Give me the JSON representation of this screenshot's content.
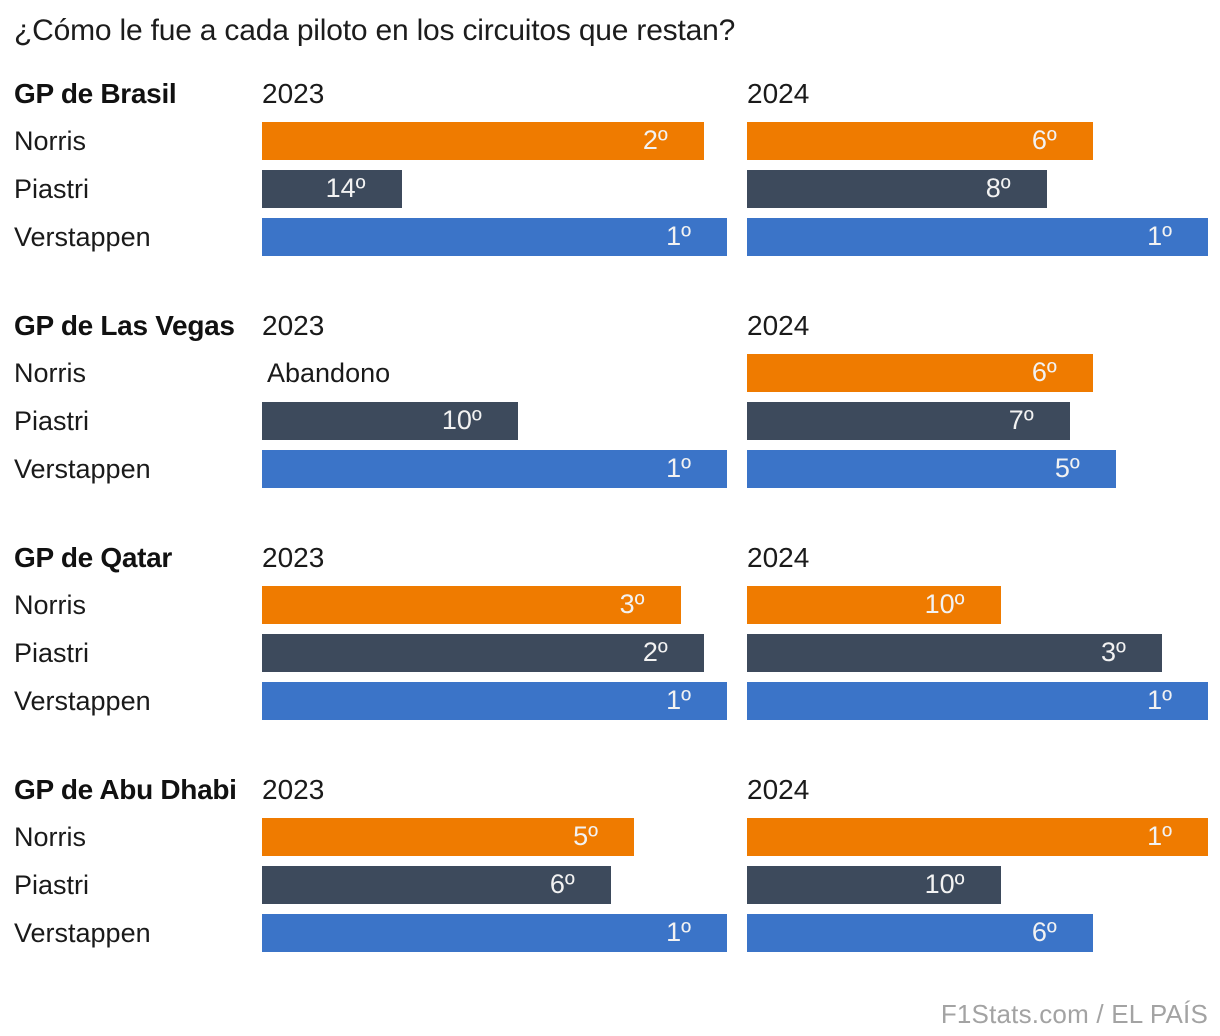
{
  "page": {
    "title": "¿Cómo le fue a cada piloto en los circuitos que restan?",
    "credit": "F1Stats.com / EL PAÍS"
  },
  "colors": {
    "norris": "#EF7B00",
    "piastri": "#3D4A5C",
    "verstappen": "#3B74C8",
    "bar_label": "#F2F2F2",
    "text": "#1A1A1A",
    "credit": "#A3A3A3"
  },
  "chart_data": {
    "type": "bar",
    "orientation": "horizontal",
    "title": "¿Cómo le fue a cada piloto en los circuitos que restan?",
    "unit": "finishing position (1º = best; longer bar = better finish)",
    "scale": "bar width percent ≈ (21 - position) / 20 of column max width; DNF shown as text, no bar",
    "legend_position": "none",
    "grid": false,
    "drivers": [
      "Norris",
      "Piastri",
      "Verstappen"
    ],
    "years": [
      "2023",
      "2024"
    ],
    "sections": [
      {
        "gp": "GP de Brasil",
        "rows": [
          {
            "driver": "Norris",
            "y2023": {
              "label": "2º",
              "position": 2,
              "width_pct": 95
            },
            "y2024": {
              "label": "6º",
              "position": 6,
              "width_pct": 75
            }
          },
          {
            "driver": "Piastri",
            "y2023": {
              "label": "14º",
              "position": 14,
              "width_pct": 30
            },
            "y2024": {
              "label": "8º",
              "position": 8,
              "width_pct": 65
            }
          },
          {
            "driver": "Verstappen",
            "y2023": {
              "label": "1º",
              "position": 1,
              "width_pct": 100
            },
            "y2024": {
              "label": "1º",
              "position": 1,
              "width_pct": 100
            }
          }
        ]
      },
      {
        "gp": "GP de Las Vegas",
        "rows": [
          {
            "driver": "Norris",
            "y2023": {
              "label": "Abandono",
              "position": null,
              "width_pct": 0,
              "dnf": true
            },
            "y2024": {
              "label": "6º",
              "position": 6,
              "width_pct": 75
            }
          },
          {
            "driver": "Piastri",
            "y2023": {
              "label": "10º",
              "position": 10,
              "width_pct": 55
            },
            "y2024": {
              "label": "7º",
              "position": 7,
              "width_pct": 70
            }
          },
          {
            "driver": "Verstappen",
            "y2023": {
              "label": "1º",
              "position": 1,
              "width_pct": 100
            },
            "y2024": {
              "label": "5º",
              "position": 5,
              "width_pct": 80
            }
          }
        ]
      },
      {
        "gp": "GP de Qatar",
        "rows": [
          {
            "driver": "Norris",
            "y2023": {
              "label": "3º",
              "position": 3,
              "width_pct": 90
            },
            "y2024": {
              "label": "10º",
              "position": 10,
              "width_pct": 55
            }
          },
          {
            "driver": "Piastri",
            "y2023": {
              "label": "2º",
              "position": 2,
              "width_pct": 95
            },
            "y2024": {
              "label": "3º",
              "position": 3,
              "width_pct": 90
            }
          },
          {
            "driver": "Verstappen",
            "y2023": {
              "label": "1º",
              "position": 1,
              "width_pct": 100
            },
            "y2024": {
              "label": "1º",
              "position": 1,
              "width_pct": 100
            }
          }
        ]
      },
      {
        "gp": "GP de Abu Dhabi",
        "rows": [
          {
            "driver": "Norris",
            "y2023": {
              "label": "5º",
              "position": 5,
              "width_pct": 80
            },
            "y2024": {
              "label": "1º",
              "position": 1,
              "width_pct": 100
            }
          },
          {
            "driver": "Piastri",
            "y2023": {
              "label": "6º",
              "position": 6,
              "width_pct": 75
            },
            "y2024": {
              "label": "10º",
              "position": 10,
              "width_pct": 55
            }
          },
          {
            "driver": "Verstappen",
            "y2023": {
              "label": "1º",
              "position": 1,
              "width_pct": 100
            },
            "y2024": {
              "label": "6º",
              "position": 6,
              "width_pct": 75
            }
          }
        ]
      }
    ]
  }
}
